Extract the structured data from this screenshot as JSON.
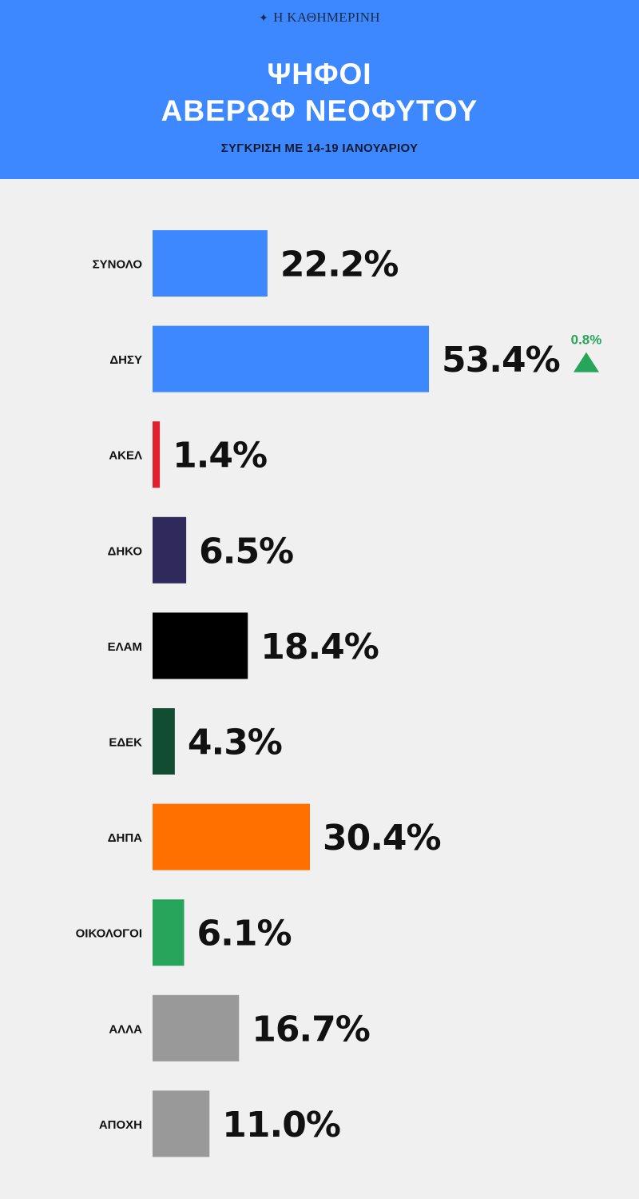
{
  "header": {
    "brand": "Η ΚΑΘΗΜΕΡΙΝΗ",
    "title_line1": "ΨΗΦΟΙ",
    "title_line2": "ΑΒΕΡΩΦ ΝΕΟΦΥΤΟΥ",
    "subtitle": "ΣΥΓΚΡΙΣΗ ΜΕ 14-19 ΙΑΝΟΥΑΡΙΟΥ",
    "background_color": "#3d88ff"
  },
  "chart_data": {
    "type": "bar",
    "orientation": "horizontal",
    "categories": [
      "ΣΥΝΟΛΟ",
      "ΔΗΣΥ",
      "ΑΚΕΛ",
      "ΔΗΚΟ",
      "ΕΛΑΜ",
      "ΕΔΕΚ",
      "ΔΗΠΑ",
      "ΟΙΚΟΛΟΓΟΙ",
      "ΑΛΛΑ",
      "ΑΠΟΧΗ"
    ],
    "values": [
      22.2,
      53.4,
      1.4,
      6.5,
      18.4,
      4.3,
      30.4,
      6.1,
      16.7,
      11.0
    ],
    "value_labels": [
      "22.2%",
      "53.4%",
      "1.4%",
      "6.5%",
      "18.4%",
      "4.3%",
      "30.4%",
      "6.1%",
      "16.7%",
      "11.0%"
    ],
    "colors": [
      "#3d88ff",
      "#3d88ff",
      "#e0202a",
      "#302a5c",
      "#000000",
      "#114d33",
      "#ff7000",
      "#27a55a",
      "#999999",
      "#999999"
    ],
    "changes": [
      {
        "category": "ΔΗΣΥ",
        "value": 0.8,
        "label": "0.8%",
        "direction": "up",
        "color": "#27a55a"
      }
    ],
    "unit": "%",
    "xlim": [
      0,
      60
    ],
    "grid": false,
    "legend": "none"
  }
}
